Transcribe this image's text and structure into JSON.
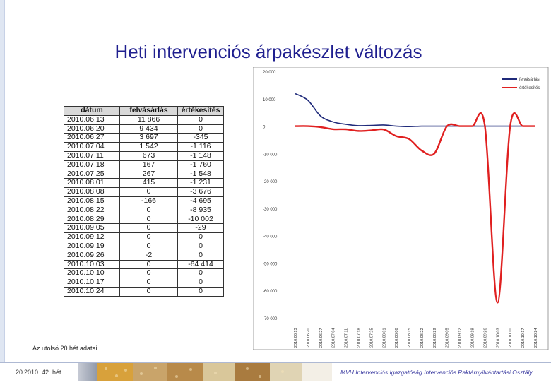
{
  "title": "Heti intervenciós árpakészlet változás",
  "table": {
    "headers": [
      "dátum",
      "felvásárlás",
      "értékesítés"
    ],
    "rows": [
      [
        "2010.06.13",
        "11 866",
        "0"
      ],
      [
        "2010.06.20",
        "9 434",
        "0"
      ],
      [
        "2010.06.27",
        "3 697",
        "-345"
      ],
      [
        "2010.07.04",
        "1 542",
        "-1 116"
      ],
      [
        "2010.07.11",
        "673",
        "-1 148"
      ],
      [
        "2010.07.18",
        "167",
        "-1 760"
      ],
      [
        "2010.07.25",
        "267",
        "-1 548"
      ],
      [
        "2010.08.01",
        "415",
        "-1 231"
      ],
      [
        "2010.08.08",
        "0",
        "-3 676"
      ],
      [
        "2010.08.15",
        "-166",
        "-4 695"
      ],
      [
        "2010.08.22",
        "0",
        "-8 935"
      ],
      [
        "2010.08.29",
        "0",
        "-10 002"
      ],
      [
        "2010.09.05",
        "0",
        "-29"
      ],
      [
        "2010.09.12",
        "0",
        "0"
      ],
      [
        "2010.09.19",
        "0",
        "0"
      ],
      [
        "2010.09.26",
        "-2",
        "0"
      ],
      [
        "2010.10.03",
        "0",
        "-64 414"
      ],
      [
        "2010.10.10",
        "0",
        "0"
      ],
      [
        "2010.10.17",
        "0",
        "0"
      ],
      [
        "2010.10.24",
        "0",
        "0"
      ]
    ]
  },
  "note": "Az utolsó 20 hét adatai",
  "footer": {
    "page": "20",
    "week": "2010. 42. hét",
    "department": "MVH Intervenciós Igazgatóság Intervenciós Raktárnyilvántartási Osztály"
  },
  "chart_data": {
    "type": "line",
    "x": [
      "2010.06.13",
      "2010.06.20",
      "2010.06.27",
      "2010.07.04",
      "2010.07.11",
      "2010.07.18",
      "2010.07.25",
      "2010.08.01",
      "2010.08.08",
      "2010.08.15",
      "2010.08.22",
      "2010.08.29",
      "2010.09.05",
      "2010.09.12",
      "2010.09.19",
      "2010.09.26",
      "2010.10.03",
      "2010.10.10",
      "2010.10.17",
      "2010.10.24"
    ],
    "x_tick_labels": [
      "2010.06.13",
      "2010.06.20",
      "2010.06.27",
      "2010.07.04",
      "2010.07.11",
      "2010.07.18",
      "2010.07.25",
      "2010.08.01",
      "2010.08.08",
      "2010.08.15",
      "2010.08.22",
      "2010.08.29",
      "2010.09.05",
      "2010.09.12",
      "2010.09.19",
      "2010.09.26",
      "2010.10.03",
      "2010.10.10",
      "2010.10.17",
      "2010.10.24"
    ],
    "series": [
      {
        "name": "felvásárlás",
        "color": "#1f2a7a",
        "values": [
          11866,
          9434,
          3697,
          1542,
          673,
          167,
          267,
          415,
          0,
          -166,
          0,
          0,
          0,
          0,
          0,
          -2,
          0,
          0,
          0,
          0
        ]
      },
      {
        "name": "értékesítés",
        "color": "#e02020",
        "values": [
          0,
          0,
          -345,
          -1116,
          -1148,
          -1760,
          -1548,
          -1231,
          -3676,
          -4695,
          -8935,
          -10002,
          -29,
          0,
          0,
          0,
          -64414,
          0,
          0,
          0
        ]
      }
    ],
    "y_ticks": [
      20000,
      10000,
      0,
      -10000,
      -20000,
      -30000,
      -40000,
      -50000,
      -60000,
      -70000
    ],
    "y_tick_labels": [
      "20 000",
      "10 000",
      "0",
      "-10 000",
      "-20 000",
      "-30 000",
      "-40 000",
      "-50 000",
      "-60 000",
      "-70 000"
    ],
    "ylim": [
      -70000,
      20000
    ],
    "reference_line": -50000,
    "legend_position": "top-right",
    "grid": false
  }
}
